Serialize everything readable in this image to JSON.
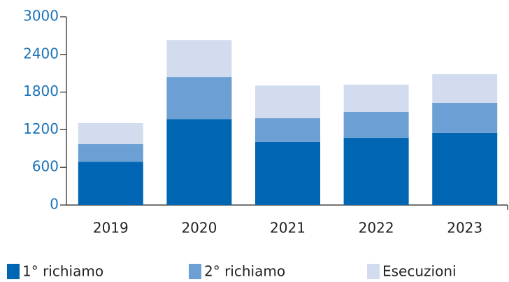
{
  "chart_data": {
    "type": "stacked_bar",
    "categories": [
      "2019",
      "2020",
      "2021",
      "2022",
      "2023"
    ],
    "series": [
      {
        "name": "1° richiamo",
        "color": "#0066b3",
        "values": [
          690,
          1370,
          1005,
          1070,
          1150
        ]
      },
      {
        "name": "2° richiamo",
        "color": "#6c9fd4",
        "values": [
          280,
          670,
          380,
          415,
          480
        ]
      },
      {
        "name": "Esecuzioni",
        "color": "#d3dcef",
        "values": [
          335,
          590,
          520,
          435,
          455
        ]
      }
    ],
    "ylim": [
      0,
      3000
    ],
    "yticks": [
      0,
      600,
      1200,
      1800,
      2400,
      3000
    ]
  }
}
